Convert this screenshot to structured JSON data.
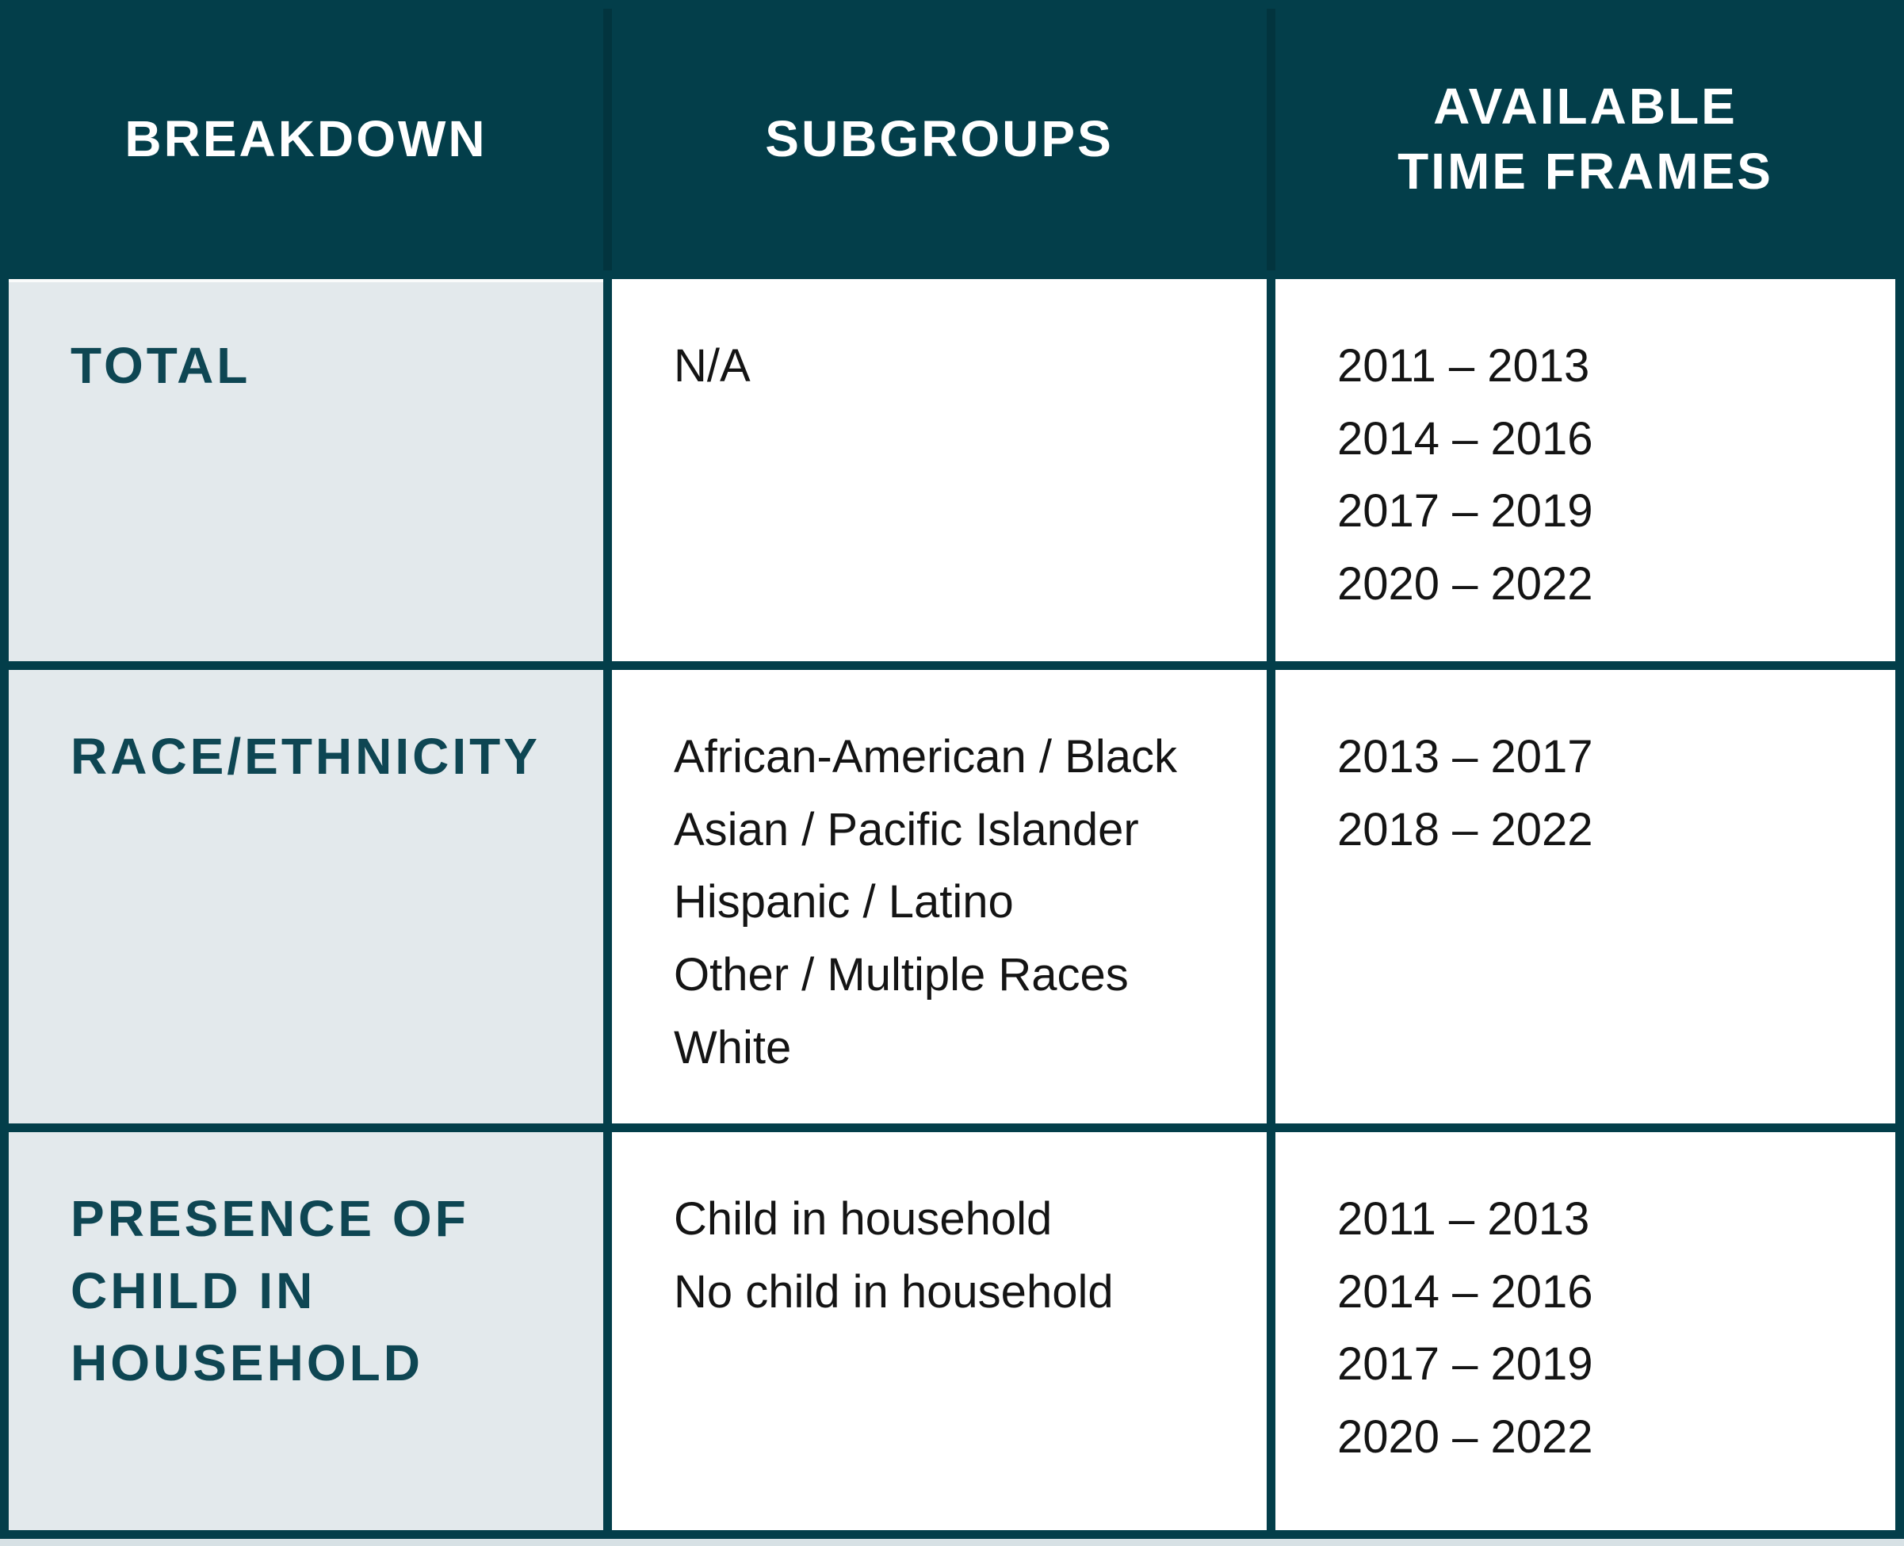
{
  "colors": {
    "header_bg": "#033e4a",
    "first_column_bg": "#e3e9ec",
    "cell_bg": "#ffffff",
    "header_text": "#ffffff",
    "breakdown_label_text": "#0e4653",
    "body_text": "#141414",
    "bottom_strip": "#d7e1e5"
  },
  "table": {
    "header": [
      {
        "lines": [
          "BREAKDOWN"
        ]
      },
      {
        "lines": [
          "SUBGROUPS"
        ]
      },
      {
        "lines": [
          "AVAILABLE",
          "TIME FRAMES"
        ]
      }
    ],
    "rows": [
      {
        "breakdown_lines": [
          "TOTAL"
        ],
        "subgroups": [
          "N/A"
        ],
        "timeframes": [
          "2011 – 2013",
          "2014 – 2016",
          "2017 – 2019",
          "2020 – 2022"
        ]
      },
      {
        "breakdown_lines": [
          "RACE/ETHNICITY"
        ],
        "subgroups": [
          "African-American / Black",
          "Asian / Pacific Islander",
          "Hispanic / Latino",
          "Other / Multiple Races",
          "White"
        ],
        "timeframes": [
          "2013 – 2017",
          "2018 – 2022"
        ]
      },
      {
        "breakdown_lines": [
          "PRESENCE OF",
          "CHILD IN",
          "HOUSEHOLD"
        ],
        "subgroups": [
          "Child in household",
          "No child in household"
        ],
        "timeframes": [
          "2011 – 2013",
          "2014 – 2016",
          "2017 – 2019",
          "2020 – 2022"
        ]
      }
    ]
  },
  "chart_data": {
    "type": "table",
    "title": "",
    "columns": [
      "BREAKDOWN",
      "SUBGROUPS",
      "AVAILABLE TIME FRAMES"
    ],
    "rows": [
      [
        "TOTAL",
        "N/A",
        "2011 – 2013; 2014 – 2016; 2017 – 2019; 2020 – 2022"
      ],
      [
        "RACE/ETHNICITY",
        "African-American / Black; Asian / Pacific Islander; Hispanic / Latino; Other / Multiple Races; White",
        "2013 – 2017; 2018 – 2022"
      ],
      [
        "PRESENCE OF CHILD IN HOUSEHOLD",
        "Child in household; No child in household",
        "2011 – 2013; 2014 – 2016; 2017 – 2019; 2020 – 2022"
      ]
    ]
  }
}
